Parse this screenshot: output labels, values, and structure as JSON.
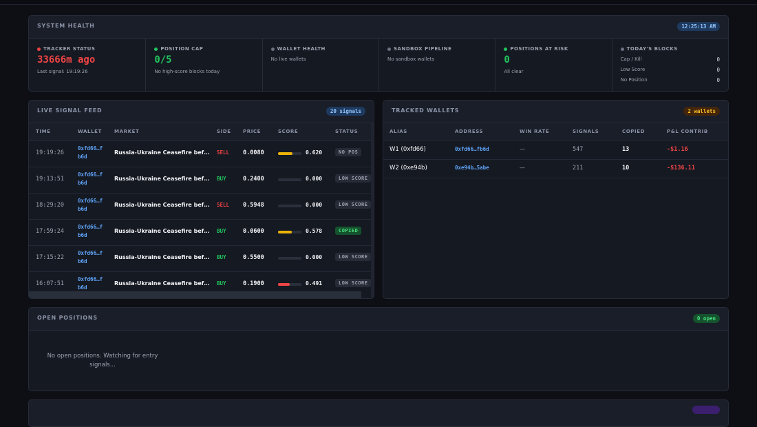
{
  "system_health": {
    "title": "SYSTEM HEALTH",
    "time": "12:25:13 AM",
    "cells": [
      {
        "label": "TRACKER STATUS",
        "dot_color": "#ef4444",
        "value": "33666m ago",
        "value_color": "#ef4444",
        "note": "Last signal: 19:19:26"
      },
      {
        "label": "POSITION CAP",
        "dot_color": "#22c55e",
        "value": "0/5",
        "value_color": "#22c55e",
        "note": "No high-score blocks today"
      },
      {
        "label": "WALLET HEALTH",
        "dot_color": "#6b7280",
        "note": "No live wallets"
      },
      {
        "label": "SANDBOX PIPELINE",
        "dot_color": "#6b7280",
        "note": "No sandbox wallets"
      },
      {
        "label": "POSITIONS AT RISK",
        "dot_color": "#22c55e",
        "value": "0",
        "value_color": "#22c55e",
        "note": "All clear"
      },
      {
        "label": "TODAY'S BLOCKS",
        "dot_color": "#6b7280",
        "rows": [
          {
            "label": "Cap / Kill",
            "value": 0
          },
          {
            "label": "Low Score",
            "value": 0
          },
          {
            "label": "No Position",
            "value": 0
          }
        ]
      }
    ]
  },
  "signal_feed": {
    "title": "LIVE SIGNAL FEED",
    "badge": "20 signals",
    "columns": [
      "TIME",
      "WALLET",
      "MARKET",
      "SIDE",
      "PRICE",
      "SCORE",
      "STATUS"
    ],
    "rows": [
      {
        "time": "19:19:26",
        "wallet": "0xfd66…fb6d",
        "market": "Russia-Ukraine Ceasefire bef…",
        "side": "SELL",
        "side_color": "#ef4444",
        "price": "0.0080",
        "score": {
          "value": 0.62,
          "label": "0.620"
        },
        "score_color": "#eab308",
        "status": "NO POS",
        "status_color": "#9ca3af",
        "status_bg": "#262b37"
      },
      {
        "time": "19:13:51",
        "wallet": "0xfd66…fb6d",
        "market": "Russia-Ukraine Ceasefire bef…",
        "side": "BUY",
        "side_color": "#22c55e",
        "price": "0.2400",
        "score": {
          "value": 0,
          "label": "0.000"
        },
        "score_color": "#eab308",
        "status": "LOW SCORE",
        "status_color": "#9ca3af",
        "status_bg": "#262b37"
      },
      {
        "time": "18:29:20",
        "wallet": "0xfd66…fb6d",
        "market": "Russia-Ukraine Ceasefire bef…",
        "side": "SELL",
        "side_color": "#ef4444",
        "price": "0.5948",
        "score": {
          "value": 0,
          "label": "0.000"
        },
        "score_color": "#eab308",
        "status": "LOW SCORE",
        "status_color": "#9ca3af",
        "status_bg": "#262b37"
      },
      {
        "time": "17:59:24",
        "wallet": "0xfd66…fb6d",
        "market": "Russia-Ukraine Ceasefire bef…",
        "side": "BUY",
        "side_color": "#22c55e",
        "price": "0.0600",
        "score": {
          "value": 0.578,
          "label": "0.578"
        },
        "score_color": "#eab308",
        "status": "COPIED",
        "status_color": "#4ade80",
        "status_bg": "#14532d"
      },
      {
        "time": "17:15:22",
        "wallet": "0xfd66…fb6d",
        "market": "Russia-Ukraine Ceasefire bef…",
        "side": "BUY",
        "side_color": "#22c55e",
        "price": "0.5500",
        "score": {
          "value": 0,
          "label": "0.000"
        },
        "score_color": "#eab308",
        "status": "LOW SCORE",
        "status_color": "#9ca3af",
        "status_bg": "#262b37"
      },
      {
        "time": "16:07:51",
        "wallet": "0xfd66…fb6d",
        "market": "Russia-Ukraine Ceasefire bef…",
        "side": "BUY",
        "side_color": "#22c55e",
        "price": "0.1900",
        "score": {
          "value": 0.491,
          "label": "0.491"
        },
        "score_color": "#ef4444",
        "status": "LOW SCORE",
        "status_color": "#9ca3af",
        "status_bg": "#262b37"
      }
    ]
  },
  "tracked_wallets": {
    "title": "TRACKED WALLETS",
    "badge": "2 wallets",
    "columns": [
      "ALIAS",
      "ADDRESS",
      "WIN RATE",
      "SIGNALS",
      "COPIED",
      "P&L CONTRIB"
    ],
    "rows": [
      {
        "alias": "W1 (0xfd66)",
        "address": "0xfd66…fb6d",
        "win_rate": "—",
        "signals": 547,
        "copied": 13,
        "pnl": "-$1.16"
      },
      {
        "alias": "W2 (0xe94b)",
        "address": "0xe94b…5abe",
        "win_rate": "—",
        "signals": 211,
        "copied": 10,
        "pnl": "-$136.11"
      }
    ]
  },
  "open_positions": {
    "title": "OPEN POSITIONS",
    "badge": "0 open",
    "empty": "No open positions. Watching for entry signals..."
  }
}
